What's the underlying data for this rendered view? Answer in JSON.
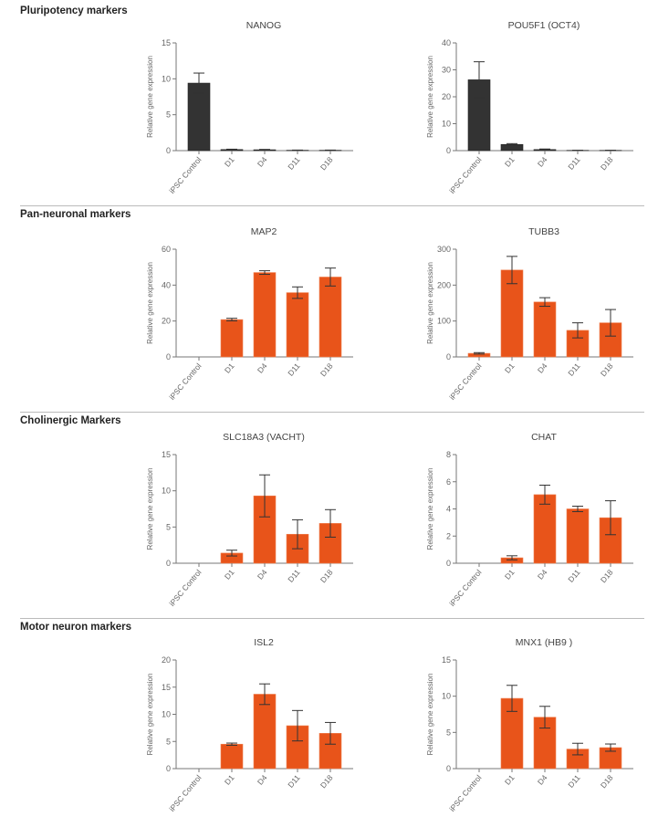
{
  "sections": [
    {
      "title": "Pluripotency markers"
    },
    {
      "title": "Pan-neuronal markers"
    },
    {
      "title": "Cholinergic Markers"
    },
    {
      "title": "Motor neuron markers"
    }
  ],
  "colors": {
    "pluripotency_bar": "#333333",
    "marker_bar": "#e8541a"
  },
  "chart_data": [
    {
      "type": "bar",
      "title": "NANOG",
      "ylabel": "Relative gene expression",
      "categories": [
        "iPSC Control",
        "D1",
        "D4",
        "D11",
        "D18"
      ],
      "values": [
        9.4,
        0.15,
        0.12,
        0.05,
        0.05
      ],
      "errors": [
        1.4,
        0.05,
        0.05,
        0.03,
        0.03
      ],
      "ylim": [
        0,
        15
      ],
      "yticks": [
        0,
        5,
        10,
        15
      ],
      "color": "#333333"
    },
    {
      "type": "bar",
      "title": "POU5F1 (OCT4)",
      "ylabel": "Relative gene expression",
      "categories": [
        "iPSC Control",
        "D1",
        "D4",
        "D11",
        "D18"
      ],
      "values": [
        26.3,
        2.3,
        0.4,
        0.1,
        0.1
      ],
      "errors": [
        6.7,
        0.3,
        0.2,
        0.05,
        0.05
      ],
      "ylim": [
        0,
        40
      ],
      "yticks": [
        0,
        10,
        20,
        30,
        40
      ],
      "color": "#333333"
    },
    {
      "type": "bar",
      "title": "MAP2",
      "ylabel": "Relative gene expression",
      "categories": [
        "iPSC Control",
        "D1",
        "D4",
        "D11",
        "D18"
      ],
      "values": [
        0,
        20.8,
        47,
        35.8,
        44.5
      ],
      "errors": [
        0,
        0.7,
        1,
        3.2,
        5
      ],
      "ylim": [
        0,
        60
      ],
      "yticks": [
        0,
        20,
        40,
        60
      ],
      "color": "#e8541a"
    },
    {
      "type": "bar",
      "title": "TUBB3",
      "ylabel": "Relative gene expression",
      "categories": [
        "iPSC Control",
        "D1",
        "D4",
        "D11",
        "D18"
      ],
      "values": [
        10,
        242,
        153,
        74,
        95
      ],
      "errors": [
        2,
        38,
        12,
        21,
        37
      ],
      "ylim": [
        0,
        300
      ],
      "yticks": [
        0,
        100,
        200,
        300
      ],
      "color": "#e8541a"
    },
    {
      "type": "bar",
      "title": "SLC18A3 (VACHT)",
      "ylabel": "Relative gene expression",
      "categories": [
        "iPSC Control",
        "D1",
        "D4",
        "D11",
        "D18"
      ],
      "values": [
        0,
        1.4,
        9.3,
        4,
        5.5
      ],
      "errors": [
        0,
        0.4,
        2.9,
        2,
        1.9
      ],
      "ylim": [
        0,
        15
      ],
      "yticks": [
        0,
        5,
        10,
        15
      ],
      "color": "#e8541a"
    },
    {
      "type": "bar",
      "title": "CHAT",
      "ylabel": "Relative gene expression",
      "categories": [
        "iPSC Control",
        "D1",
        "D4",
        "D11",
        "D18"
      ],
      "values": [
        0,
        0.4,
        5.05,
        4.0,
        3.35
      ],
      "errors": [
        0,
        0.15,
        0.7,
        0.2,
        1.25
      ],
      "ylim": [
        0,
        8
      ],
      "yticks": [
        0,
        2,
        4,
        6,
        8
      ],
      "color": "#e8541a"
    },
    {
      "type": "bar",
      "title": "ISL2",
      "ylabel": "Relative gene expression",
      "categories": [
        "iPSC Control",
        "D1",
        "D4",
        "D11",
        "D18"
      ],
      "values": [
        0,
        4.5,
        13.7,
        7.9,
        6.5
      ],
      "errors": [
        0,
        0.2,
        1.9,
        2.8,
        2
      ],
      "ylim": [
        0,
        20
      ],
      "yticks": [
        0,
        5,
        10,
        15,
        20
      ],
      "color": "#e8541a"
    },
    {
      "type": "bar",
      "title": "MNX1 (HB9 )",
      "ylabel": "Relative gene expression",
      "categories": [
        "iPSC Control",
        "D1",
        "D4",
        "D11",
        "D18"
      ],
      "values": [
        0,
        9.7,
        7.1,
        2.7,
        2.9
      ],
      "errors": [
        0,
        1.8,
        1.5,
        0.8,
        0.5
      ],
      "ylim": [
        0,
        15
      ],
      "yticks": [
        0,
        5,
        10,
        15
      ],
      "color": "#e8541a"
    }
  ]
}
